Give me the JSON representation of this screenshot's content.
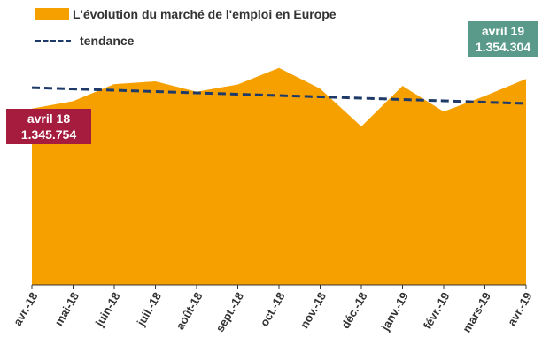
{
  "chart_data": {
    "type": "area",
    "categories": [
      "avr.-18",
      "mai-18",
      "juin-18",
      "juil.-18",
      "août-18",
      "sept.-18",
      "oct.-18",
      "nov.-18",
      "déc.-18",
      "janv.-19",
      "févr.-19",
      "mars-19",
      "avr.-19"
    ],
    "series": [
      {
        "name": "L'évolution du marché de l'emploi en Europe",
        "type": "area",
        "color": "#f6a000",
        "values": [
          1345754,
          1347900,
          1352800,
          1353600,
          1350600,
          1352700,
          1357500,
          1351500,
          1340600,
          1352300,
          1344900,
          1349400,
          1354304
        ]
      },
      {
        "name": "tendance",
        "type": "line",
        "style": "dashed",
        "color": "#1e3a68",
        "values": [
          1351800,
          1351420,
          1351040,
          1350660,
          1350280,
          1349900,
          1349520,
          1349140,
          1348760,
          1348380,
          1348000,
          1347620,
          1347240
        ]
      }
    ],
    "callouts": [
      {
        "label": "avril 18",
        "value": "1.345.754",
        "color": "#a51c3e"
      },
      {
        "label": "avril 19",
        "value": "1.354.304",
        "color": "#5a9a8a"
      }
    ],
    "ylim": [
      1295000,
      1375000
    ],
    "grid": false,
    "legend_position": "top-left"
  }
}
